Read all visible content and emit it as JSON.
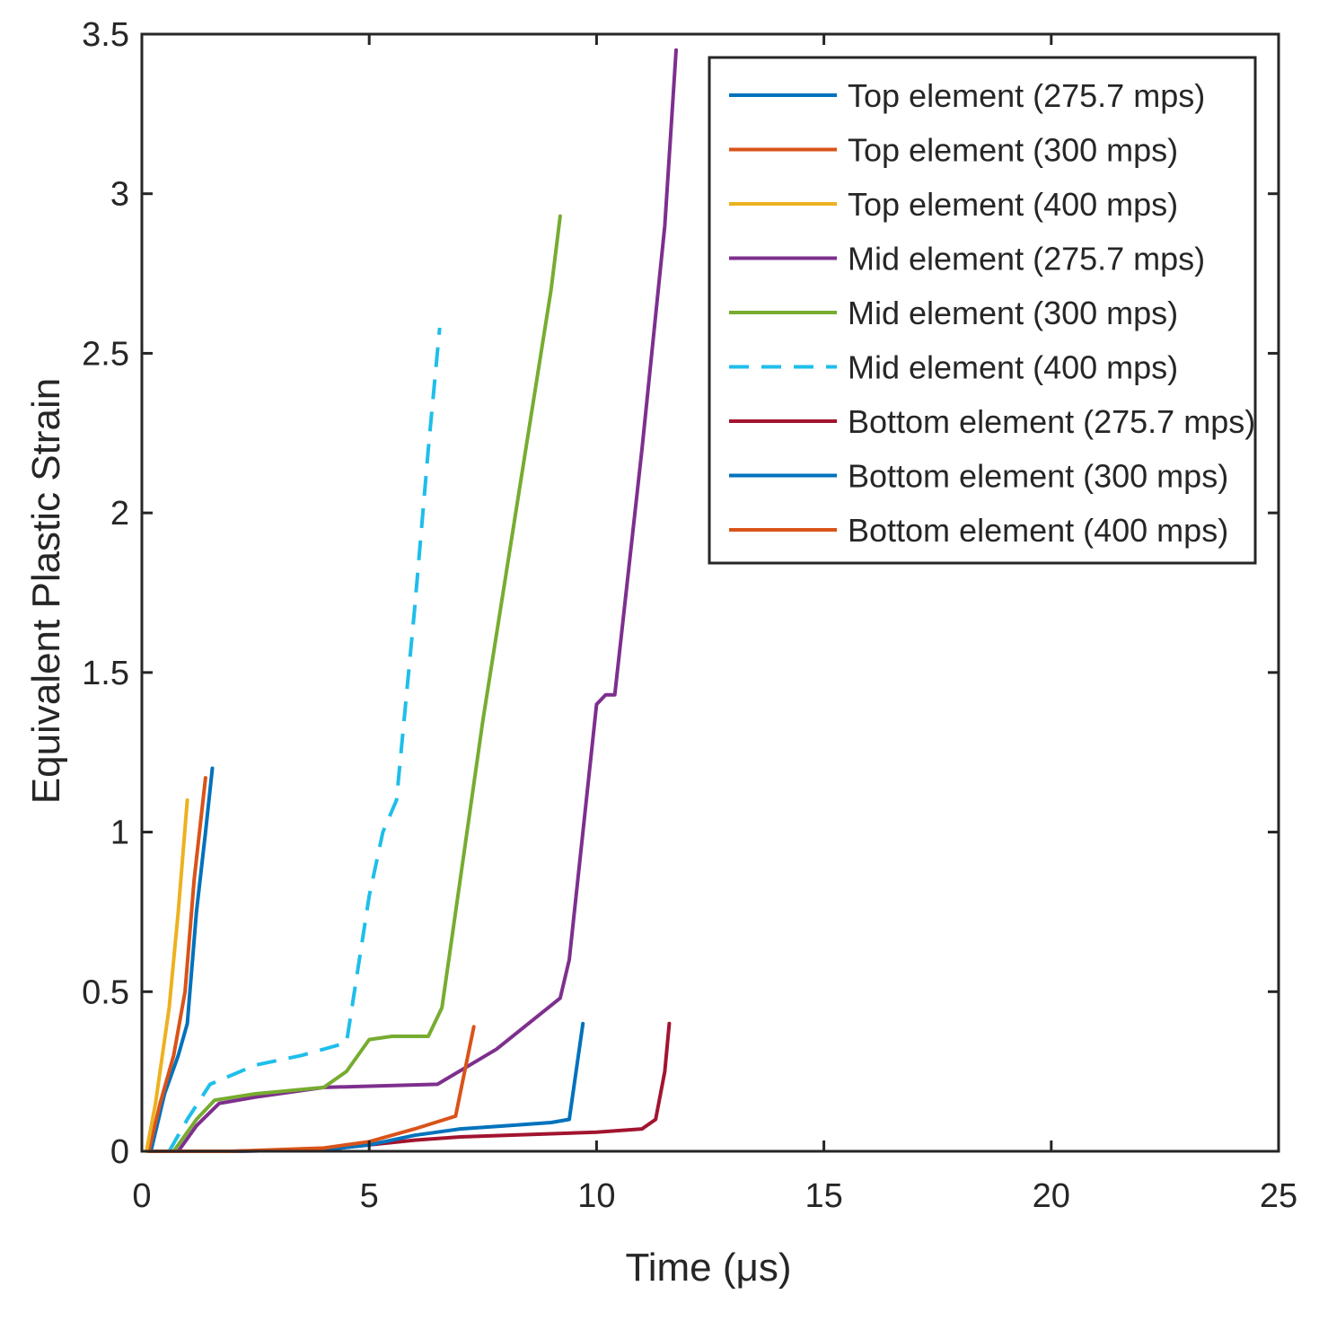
{
  "chart_data": {
    "type": "line",
    "title": "",
    "xlabel": "Time (μs)",
    "ylabel": "Equivalent Plastic Strain",
    "xlim": [
      0,
      25
    ],
    "ylim": [
      0,
      3.5
    ],
    "xticks": [
      0,
      5,
      10,
      15,
      20,
      25
    ],
    "yticks": [
      0,
      0.5,
      1,
      1.5,
      2,
      2.5,
      3,
      3.5
    ],
    "xtick_labels": [
      "0",
      "5",
      "10",
      "15",
      "20",
      "25"
    ],
    "ytick_labels": [
      "0",
      "0.5",
      "1",
      "1.5",
      "2",
      "2.5",
      "3",
      "3.5"
    ],
    "grid": false,
    "legend_position": "top-right",
    "series": [
      {
        "name": "Top element (275.7 mps)",
        "color": "#0072BD",
        "dash": "solid",
        "x": [
          0.2,
          0.5,
          0.8,
          1.0,
          1.2,
          1.4,
          1.55
        ],
        "y": [
          0,
          0.18,
          0.3,
          0.4,
          0.75,
          1.0,
          1.2
        ]
      },
      {
        "name": "Top element (300 mps)",
        "color": "#D95319",
        "dash": "solid",
        "x": [
          0.15,
          0.4,
          0.7,
          0.95,
          1.15,
          1.4
        ],
        "y": [
          0,
          0.15,
          0.3,
          0.5,
          0.85,
          1.17
        ]
      },
      {
        "name": "Top element (400 mps)",
        "color": "#EDB120",
        "dash": "solid",
        "x": [
          0.1,
          0.3,
          0.6,
          0.8,
          1.0
        ],
        "y": [
          0,
          0.15,
          0.45,
          0.75,
          1.1
        ]
      },
      {
        "name": "Mid element (275.7 mps)",
        "color": "#7E2F8E",
        "dash": "solid",
        "x": [
          0.8,
          1.2,
          1.7,
          2.5,
          4.0,
          6.5,
          7.8,
          9.2,
          9.4,
          9.7,
          10.0,
          10.2,
          10.4,
          11.0,
          11.5,
          11.75
        ],
        "y": [
          0,
          0.08,
          0.15,
          0.17,
          0.2,
          0.21,
          0.32,
          0.48,
          0.6,
          1.0,
          1.4,
          1.43,
          1.43,
          2.2,
          2.9,
          3.45
        ]
      },
      {
        "name": "Mid element (300 mps)",
        "color": "#77AC30",
        "dash": "solid",
        "x": [
          0.7,
          1.2,
          1.6,
          2.5,
          4.0,
          4.5,
          5.0,
          5.5,
          6.3,
          6.6,
          7.0,
          7.5,
          8.0,
          8.5,
          9.0,
          9.2
        ],
        "y": [
          0,
          0.1,
          0.16,
          0.18,
          0.2,
          0.25,
          0.35,
          0.36,
          0.36,
          0.45,
          0.85,
          1.35,
          1.8,
          2.25,
          2.7,
          2.93
        ]
      },
      {
        "name": "Mid element (400 mps)",
        "color": "#1EBEEB",
        "dash": "dashed",
        "x": [
          0.6,
          1.0,
          1.5,
          2.5,
          3.5,
          4.5,
          5.0,
          5.3,
          5.6,
          6.0,
          6.3,
          6.55
        ],
        "y": [
          0,
          0.1,
          0.21,
          0.27,
          0.3,
          0.34,
          0.8,
          1.0,
          1.1,
          1.7,
          2.2,
          2.58
        ]
      },
      {
        "name": "Bottom element (275.7 mps)",
        "color": "#A2142F",
        "dash": "solid",
        "x": [
          0.2,
          2.0,
          4.0,
          5.0,
          6.0,
          7.0,
          8.0,
          9.0,
          10.0,
          11.0,
          11.3,
          11.5,
          11.6
        ],
        "y": [
          0,
          0,
          0.005,
          0.02,
          0.035,
          0.045,
          0.05,
          0.055,
          0.06,
          0.07,
          0.1,
          0.25,
          0.4
        ]
      },
      {
        "name": "Bottom element (300 mps)",
        "color": "#0072BD",
        "dash": "solid",
        "x": [
          0.2,
          2.0,
          4.0,
          5.0,
          6.0,
          7.0,
          8.0,
          9.0,
          9.4,
          9.55,
          9.7
        ],
        "y": [
          0,
          0,
          0.005,
          0.02,
          0.05,
          0.07,
          0.08,
          0.09,
          0.1,
          0.25,
          0.4
        ]
      },
      {
        "name": "Bottom element (400 mps)",
        "color": "#D95319",
        "dash": "solid",
        "x": [
          0.2,
          2.0,
          4.0,
          5.0,
          6.0,
          6.9,
          7.1,
          7.3
        ],
        "y": [
          0,
          0,
          0.01,
          0.03,
          0.07,
          0.11,
          0.25,
          0.39
        ]
      }
    ]
  }
}
